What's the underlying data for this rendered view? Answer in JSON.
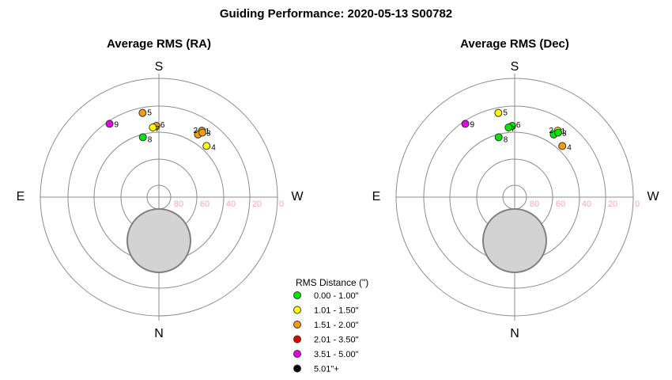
{
  "title": "Guiding Performance: 2020-05-13 S00782",
  "legend": {
    "title": "RMS Distance (\")",
    "items": [
      {
        "label": "0.00 - 1.00\"",
        "color": "#00e600"
      },
      {
        "label": "1.01 - 1.50\"",
        "color": "#ffff00"
      },
      {
        "label": "1.51 - 2.00\"",
        "color": "#f39c12"
      },
      {
        "label": "2.01 - 3.50\"",
        "color": "#e60000"
      },
      {
        "label": "3.51 - 5.00\"",
        "color": "#e600e6"
      },
      {
        "label": "5.01\"+",
        "color": "#000000"
      }
    ]
  },
  "chart_data": [
    {
      "type": "scatter",
      "projection": "polar-altaz",
      "title": "Average RMS (RA)",
      "directions": {
        "top": "S",
        "bottom": "N",
        "left": "E",
        "right": "W"
      },
      "radial_ticks": [
        "80",
        "60",
        "40",
        "20",
        "0"
      ],
      "altitude_range": [
        0,
        90
      ],
      "obstruction": {
        "az": 0,
        "alt": 57,
        "radius_deg": 24
      },
      "points": [
        {
          "label": "1",
          "az": 213,
          "alt": 30,
          "category": "1.51 - 2.00\""
        },
        {
          "label": "2",
          "az": 212,
          "alt": 34,
          "category": "1.51 - 2.00\""
        },
        {
          "label": "3",
          "az": 214,
          "alt": 31,
          "category": "1.51 - 2.00\""
        },
        {
          "label": "4",
          "az": 223,
          "alt": 37,
          "category": "1.01 - 1.50\""
        },
        {
          "label": "5",
          "az": 169,
          "alt": 25,
          "category": "1.51 - 2.00\""
        },
        {
          "label": "6",
          "az": 178,
          "alt": 36,
          "category": "1.51 - 2.00\""
        },
        {
          "label": "7",
          "az": 175,
          "alt": 37,
          "category": "1.01 - 1.50\""
        },
        {
          "label": "8",
          "az": 165,
          "alt": 43,
          "category": "0.00 - 1.00\""
        },
        {
          "label": "9",
          "az": 146,
          "alt": 23,
          "category": "3.51 - 5.00\""
        }
      ]
    },
    {
      "type": "scatter",
      "projection": "polar-altaz",
      "title": "Average RMS (Dec)",
      "directions": {
        "top": "S",
        "bottom": "N",
        "left": "E",
        "right": "W"
      },
      "radial_ticks": [
        "80",
        "60",
        "40",
        "20",
        "0"
      ],
      "altitude_range": [
        0,
        90
      ],
      "obstruction": {
        "az": 0,
        "alt": 57,
        "radius_deg": 24
      },
      "points": [
        {
          "label": "1",
          "az": 213,
          "alt": 30,
          "category": "1.01 - 1.50\""
        },
        {
          "label": "2",
          "az": 212,
          "alt": 34,
          "category": "0.00 - 1.00\""
        },
        {
          "label": "3",
          "az": 214,
          "alt": 31,
          "category": "0.00 - 1.00\""
        },
        {
          "label": "4",
          "az": 223,
          "alt": 37,
          "category": "1.51 - 2.00\""
        },
        {
          "label": "5",
          "az": 169,
          "alt": 25,
          "category": "1.01 - 1.50\""
        },
        {
          "label": "6",
          "az": 178,
          "alt": 36,
          "category": "0.00 - 1.00\""
        },
        {
          "label": "7",
          "az": 175,
          "alt": 37,
          "category": "0.00 - 1.00\""
        },
        {
          "label": "8",
          "az": 165,
          "alt": 43,
          "category": "0.00 - 1.00\""
        },
        {
          "label": "9",
          "az": 146,
          "alt": 23,
          "category": "3.51 - 5.00\""
        }
      ]
    }
  ]
}
